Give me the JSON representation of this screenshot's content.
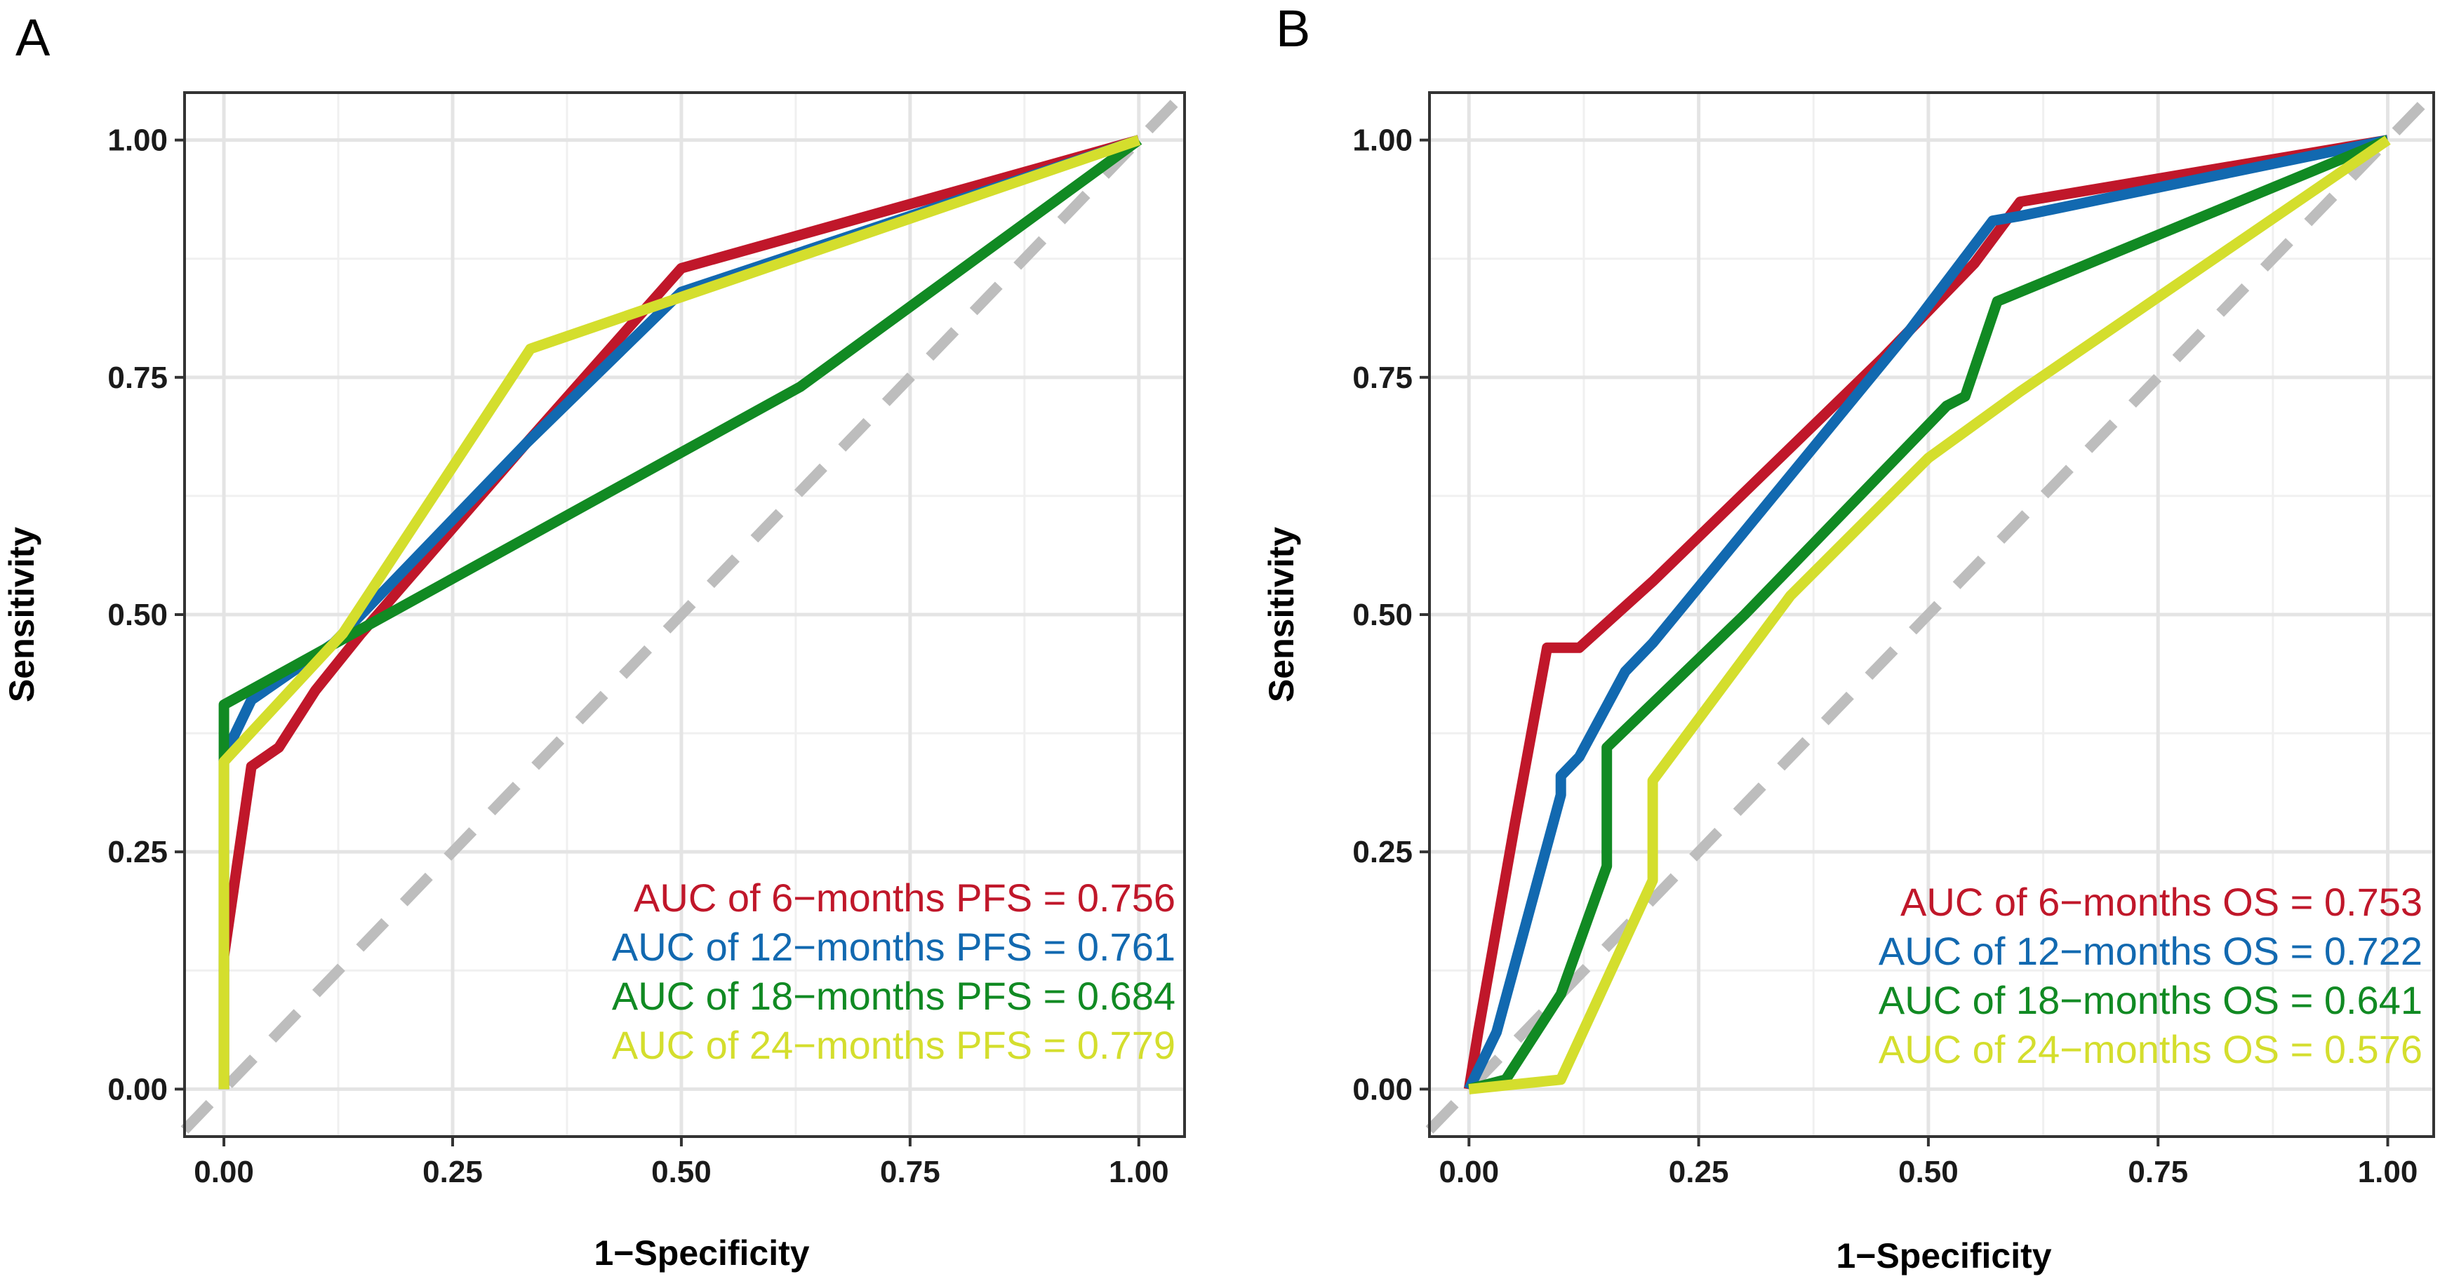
{
  "chart_data": [
    {
      "type": "line",
      "panel_label": "A",
      "xlabel": "1−Specificity",
      "ylabel": "Sensitivity",
      "xlim": [
        -0.043,
        1.05
      ],
      "ylim": [
        -0.05,
        1.05
      ],
      "xticks": [
        "0.00",
        "0.25",
        "0.50",
        "0.75",
        "1.00"
      ],
      "yticks": [
        "0.00",
        "0.25",
        "0.50",
        "0.75",
        "1.00"
      ],
      "diagonal": "reference line y = x (dashed, grey)",
      "legend_position": "bottom-right",
      "series": [
        {
          "name": "AUC of 6−months PFS = 0.756",
          "color": "#C0172A",
          "points": [
            [
              0,
              0
            ],
            [
              0,
              0.14
            ],
            [
              0.03,
              0.34
            ],
            [
              0.06,
              0.36
            ],
            [
              0.1,
              0.42
            ],
            [
              0.15,
              0.48
            ],
            [
              0.33,
              0.68
            ],
            [
              0.5,
              0.865
            ],
            [
              1,
              1
            ]
          ]
        },
        {
          "name": "AUC of 12−months PFS = 0.761",
          "color": "#1269B0",
          "points": [
            [
              0,
              0.35
            ],
            [
              0.03,
              0.41
            ],
            [
              0.12,
              0.47
            ],
            [
              0.33,
              0.68
            ],
            [
              0.5,
              0.84
            ],
            [
              1,
              1
            ]
          ]
        },
        {
          "name": "AUC of 18−months PFS = 0.684",
          "color": "#118A23",
          "points": [
            [
              0,
              0
            ],
            [
              0,
              0.405
            ],
            [
              0.63,
              0.74
            ],
            [
              1,
              1
            ]
          ]
        },
        {
          "name": "AUC of 24−months PFS = 0.779",
          "color": "#D4DE2D",
          "points": [
            [
              0,
              0
            ],
            [
              0,
              0.345
            ],
            [
              0.13,
              0.48
            ],
            [
              0.335,
              0.78
            ],
            [
              1,
              1
            ]
          ]
        }
      ]
    },
    {
      "type": "line",
      "panel_label": "B",
      "xlabel": "1−Specificity",
      "ylabel": "Sensitivity",
      "xlim": [
        -0.043,
        1.05
      ],
      "ylim": [
        -0.05,
        1.05
      ],
      "xticks": [
        "0.00",
        "0.25",
        "0.50",
        "0.75",
        "1.00"
      ],
      "yticks": [
        "0.00",
        "0.25",
        "0.50",
        "0.75",
        "1.00"
      ],
      "diagonal": "reference line y = x (dashed, grey)",
      "legend_position": "bottom-right",
      "series": [
        {
          "name": "AUC of 6−months OS = 0.753",
          "color": "#C0172A",
          "points": [
            [
              0,
              0
            ],
            [
              0.01,
              0.06
            ],
            [
              0.05,
              0.28
            ],
            [
              0.085,
              0.465
            ],
            [
              0.12,
              0.465
            ],
            [
              0.2,
              0.535
            ],
            [
              0.45,
              0.77
            ],
            [
              0.55,
              0.87
            ],
            [
              0.6,
              0.935
            ],
            [
              1,
              1
            ]
          ]
        },
        {
          "name": "AUC of 12−months OS = 0.722",
          "color": "#1269B0",
          "points": [
            [
              0,
              0
            ],
            [
              0.03,
              0.06
            ],
            [
              0.1,
              0.31
            ],
            [
              0.1,
              0.33
            ],
            [
              0.12,
              0.35
            ],
            [
              0.17,
              0.44
            ],
            [
              0.2,
              0.47
            ],
            [
              0.48,
              0.8
            ],
            [
              0.57,
              0.915
            ],
            [
              0.6,
              0.92
            ],
            [
              1,
              1
            ]
          ]
        },
        {
          "name": "AUC of 18−months OS = 0.641",
          "color": "#118A23",
          "points": [
            [
              0,
              0
            ],
            [
              0.04,
              0.01
            ],
            [
              0.1,
              0.1
            ],
            [
              0.15,
              0.235
            ],
            [
              0.15,
              0.36
            ],
            [
              0.3,
              0.5
            ],
            [
              0.52,
              0.72
            ],
            [
              0.54,
              0.73
            ],
            [
              0.575,
              0.83
            ],
            [
              1,
              1
            ]
          ]
        },
        {
          "name": "AUC of 24−months OS = 0.576",
          "color": "#D4DE2D",
          "points": [
            [
              0,
              0
            ],
            [
              0.1,
              0.01
            ],
            [
              0.2,
              0.22
            ],
            [
              0.2,
              0.325
            ],
            [
              0.35,
              0.52
            ],
            [
              0.5,
              0.665
            ],
            [
              0.6,
              0.735
            ],
            [
              1,
              1
            ]
          ]
        }
      ]
    }
  ]
}
